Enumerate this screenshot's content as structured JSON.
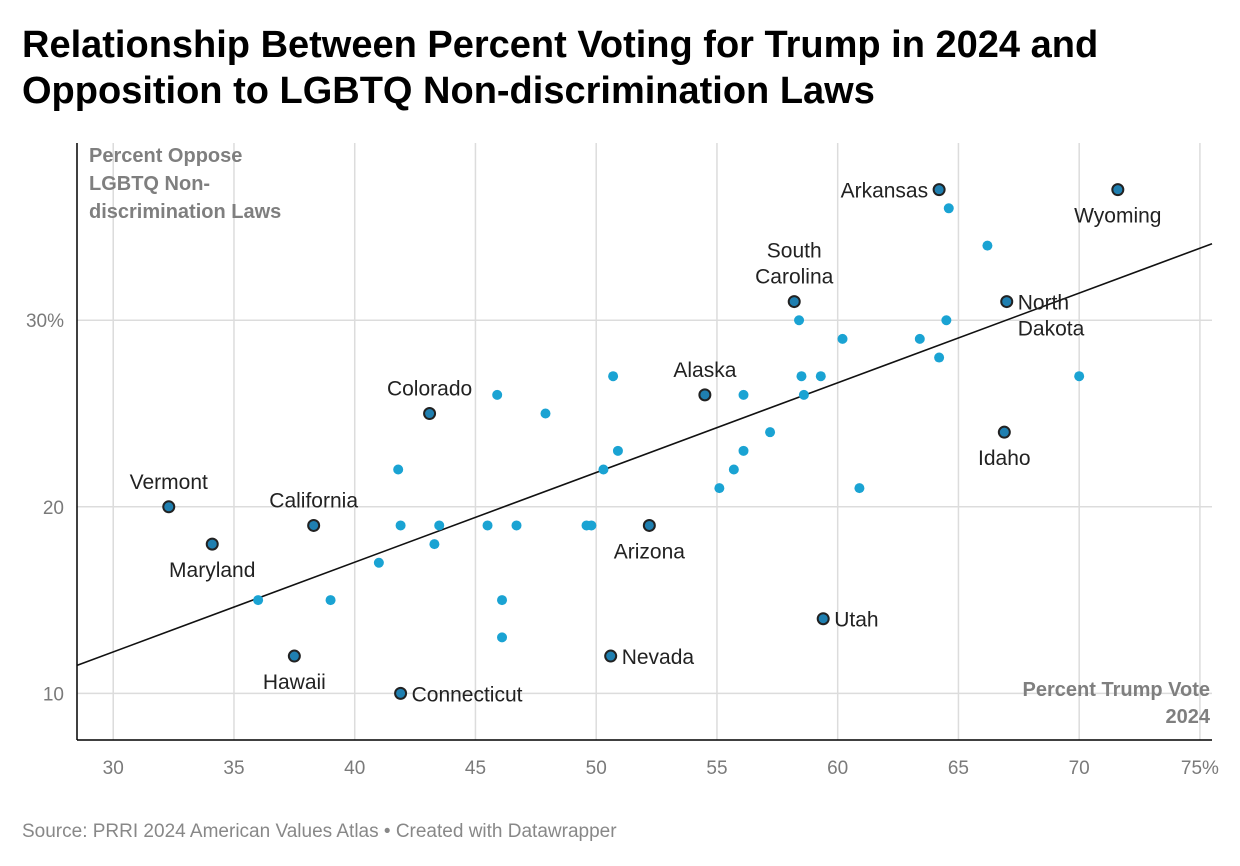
{
  "title": "Relationship Between Percent Voting for Trump in 2024 and Opposition to LGBTQ Non-discrimination Laws",
  "source": "Source: PRRI 2024 American Values Atlas • Created with Datawrapper",
  "colors": {
    "dot": "#1aa3d3",
    "highlight_dot": "#1f7fb0",
    "outline": "#222222",
    "trend": "#111111",
    "grid": "#dcdcdc",
    "axis": "#000000"
  },
  "chart_data": {
    "type": "scatter",
    "y_title": [
      "Percent Oppose",
      "LGBTQ Non-",
      "discrimination Laws"
    ],
    "x_title": [
      "Percent Trump Vote",
      "2024"
    ],
    "xlim": [
      28.5,
      75.5
    ],
    "ylim": [
      7.5,
      39.5
    ],
    "x_ticks": [
      {
        "value": 30,
        "label": "30"
      },
      {
        "value": 35,
        "label": "35"
      },
      {
        "value": 40,
        "label": "40"
      },
      {
        "value": 45,
        "label": "45"
      },
      {
        "value": 50,
        "label": "50"
      },
      {
        "value": 55,
        "label": "55"
      },
      {
        "value": 60,
        "label": "60"
      },
      {
        "value": 65,
        "label": "65"
      },
      {
        "value": 70,
        "label": "70"
      },
      {
        "value": 75,
        "label": "75%"
      }
    ],
    "y_ticks": [
      {
        "value": 10,
        "label": "10"
      },
      {
        "value": 20,
        "label": "20"
      },
      {
        "value": 30,
        "label": "30%"
      }
    ],
    "trend_line": {
      "x": [
        28.5,
        75.5
      ],
      "y": [
        11.5,
        34.1
      ]
    },
    "labeled_points": [
      {
        "label": [
          "Arkansas"
        ],
        "x": 64.2,
        "y": 37,
        "pos": "left"
      },
      {
        "label": [
          "Wyoming"
        ],
        "x": 71.6,
        "y": 37,
        "pos": "below"
      },
      {
        "label": [
          "South",
          "Carolina"
        ],
        "x": 58.2,
        "y": 31,
        "pos": "above"
      },
      {
        "label": [
          "North",
          "Dakota"
        ],
        "x": 67.0,
        "y": 31,
        "pos": "right-down"
      },
      {
        "label": [
          "Alaska"
        ],
        "x": 54.5,
        "y": 26,
        "pos": "above"
      },
      {
        "label": [
          "Colorado"
        ],
        "x": 43.1,
        "y": 25,
        "pos": "above"
      },
      {
        "label": [
          "Idaho"
        ],
        "x": 66.9,
        "y": 24,
        "pos": "below"
      },
      {
        "label": [
          "Vermont"
        ],
        "x": 32.3,
        "y": 20,
        "pos": "above"
      },
      {
        "label": [
          "California"
        ],
        "x": 38.3,
        "y": 19,
        "pos": "above"
      },
      {
        "label": [
          "Arizona"
        ],
        "x": 52.2,
        "y": 19,
        "pos": "below"
      },
      {
        "label": [
          "Maryland"
        ],
        "x": 34.1,
        "y": 18,
        "pos": "below"
      },
      {
        "label": [
          "Utah"
        ],
        "x": 59.4,
        "y": 14,
        "pos": "right"
      },
      {
        "label": [
          "Hawaii"
        ],
        "x": 37.5,
        "y": 12,
        "pos": "below"
      },
      {
        "label": [
          "Nevada"
        ],
        "x": 50.6,
        "y": 12,
        "pos": "right"
      },
      {
        "label": [
          "Connecticut"
        ],
        "x": 41.9,
        "y": 10,
        "pos": "right"
      }
    ],
    "points": [
      {
        "x": 64.6,
        "y": 36
      },
      {
        "x": 66.2,
        "y": 34
      },
      {
        "x": 58.4,
        "y": 30
      },
      {
        "x": 64.5,
        "y": 30
      },
      {
        "x": 60.2,
        "y": 29
      },
      {
        "x": 63.4,
        "y": 29
      },
      {
        "x": 64.2,
        "y": 28
      },
      {
        "x": 50.7,
        "y": 27
      },
      {
        "x": 58.5,
        "y": 27
      },
      {
        "x": 59.3,
        "y": 27
      },
      {
        "x": 70.0,
        "y": 27
      },
      {
        "x": 45.9,
        "y": 26
      },
      {
        "x": 56.1,
        "y": 26
      },
      {
        "x": 58.6,
        "y": 26
      },
      {
        "x": 47.9,
        "y": 25
      },
      {
        "x": 57.2,
        "y": 24
      },
      {
        "x": 50.9,
        "y": 23
      },
      {
        "x": 56.1,
        "y": 23
      },
      {
        "x": 41.8,
        "y": 22
      },
      {
        "x": 50.3,
        "y": 22
      },
      {
        "x": 55.7,
        "y": 22
      },
      {
        "x": 55.1,
        "y": 21
      },
      {
        "x": 60.9,
        "y": 21
      },
      {
        "x": 41.9,
        "y": 19
      },
      {
        "x": 43.5,
        "y": 19
      },
      {
        "x": 45.5,
        "y": 19
      },
      {
        "x": 46.7,
        "y": 19
      },
      {
        "x": 49.6,
        "y": 19
      },
      {
        "x": 49.8,
        "y": 19
      },
      {
        "x": 43.3,
        "y": 18
      },
      {
        "x": 41.0,
        "y": 17
      },
      {
        "x": 36.0,
        "y": 15
      },
      {
        "x": 39.0,
        "y": 15
      },
      {
        "x": 46.1,
        "y": 15
      },
      {
        "x": 46.1,
        "y": 13
      }
    ]
  }
}
